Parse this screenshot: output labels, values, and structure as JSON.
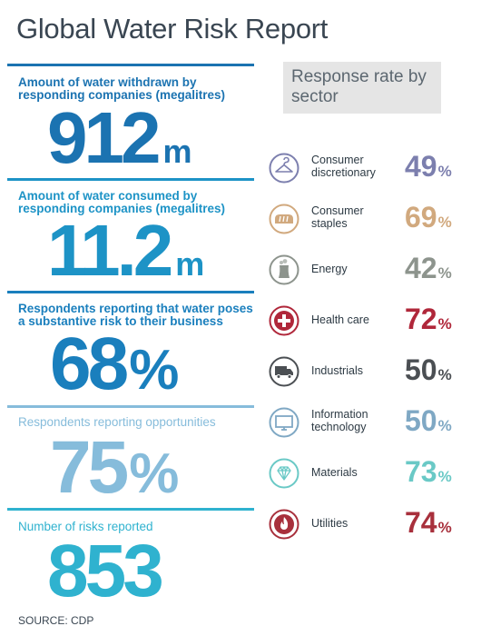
{
  "title": "Global Water Risk Report",
  "source": "SOURCE: CDP",
  "colors": {
    "title": "#3a4652",
    "blue_dark": "#1b73b1",
    "blue_mid": "#1a87c4",
    "blue_light": "#7fb8d8",
    "cyan": "#2fb2cf"
  },
  "stats": [
    {
      "label": "Amount of water withdrawn by responding companies (megalitres)",
      "value": "912",
      "unit": "m",
      "color": "#1b73b1"
    },
    {
      "label": "Amount of water consumed by responding companies (megalitres)",
      "value": "11.2",
      "unit": "m",
      "color": "#1d93c6"
    },
    {
      "label": "Respondents reporting that water poses a substantive risk to their business",
      "value": "68",
      "unit": "%",
      "color": "#1a7fbd"
    },
    {
      "label": "Respondents reporting opportunities",
      "value": "75",
      "unit": "%",
      "color": "#86bcdb"
    },
    {
      "label": "Number of risks reported",
      "value": "853",
      "unit": "",
      "color": "#2fb2cf"
    }
  ],
  "response": {
    "heading": "Response rate by sector",
    "sectors": [
      {
        "name": "Consumer discretionary",
        "value": "49",
        "sign": "%",
        "color": "#7c7fae",
        "icon": "hanger-icon"
      },
      {
        "name": "Consumer staples",
        "value": "69",
        "sign": "%",
        "color": "#d1a97e",
        "icon": "bread-icon"
      },
      {
        "name": "Energy",
        "value": "42",
        "sign": "%",
        "color": "#8d948d",
        "icon": "power-plant-icon"
      },
      {
        "name": "Health care",
        "value": "72",
        "sign": "%",
        "color": "#b0273a",
        "icon": "medical-cross-icon"
      },
      {
        "name": "Industrials",
        "value": "50",
        "sign": "%",
        "color": "#4b4f53",
        "icon": "truck-icon"
      },
      {
        "name": "Information technology",
        "value": "50",
        "sign": "%",
        "color": "#7fa8c4",
        "icon": "monitor-icon"
      },
      {
        "name": "Materials",
        "value": "73",
        "sign": "%",
        "color": "#6ac9c6",
        "icon": "diamond-icon"
      },
      {
        "name": "Utilities",
        "value": "74",
        "sign": "%",
        "color": "#a8303c",
        "icon": "flame-icon"
      }
    ]
  }
}
